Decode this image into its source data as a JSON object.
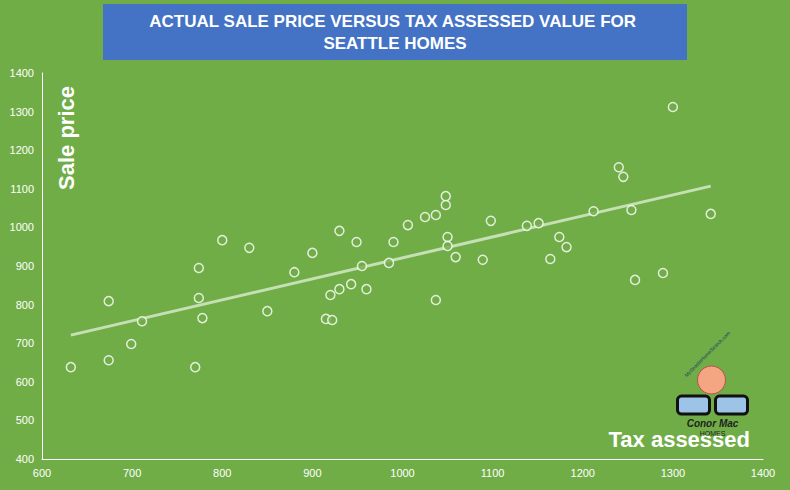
{
  "chart_data": {
    "type": "scatter",
    "title": "ACTUAL SALE PRICE VERSUS TAX ASSESSED VALUE FOR SEATTLE HOMES",
    "x_label": "Tax assessed",
    "y_label": "Sale price",
    "logo_texts": [
      "MySeattleHomeSearch.com",
      "Conor Mac",
      "HOMES"
    ],
    "x": [
      632,
      674,
      674,
      699,
      711,
      770,
      774,
      774,
      778,
      800,
      830,
      850,
      880,
      900,
      915,
      922,
      920,
      930,
      930,
      943,
      949,
      955,
      960,
      985,
      990,
      1006,
      1025,
      1037,
      1037,
      1048,
      1048,
      1050,
      1050,
      1059,
      1089,
      1098,
      1138,
      1151,
      1164,
      1174,
      1182,
      1212,
      1240,
      1245,
      1254,
      1258,
      1289,
      1300,
      1342
    ],
    "values": [
      638,
      809,
      656,
      698,
      757,
      638,
      895,
      817,
      765,
      967,
      947,
      783,
      884,
      934,
      763,
      760,
      825,
      840,
      991,
      853,
      962,
      900,
      840,
      908,
      962,
      1006,
      1027,
      1032,
      812,
      1081,
      1058,
      975,
      952,
      923,
      916,
      1017,
      1004,
      1011,
      918,
      975,
      949,
      1042,
      1156,
      1131,
      1045,
      864,
      882,
      1312,
      1035
    ],
    "trendline": {
      "x": [
        632,
        1342
      ],
      "values": [
        721,
        1107
      ]
    },
    "color": "#ffffff",
    "marker": "circle_open",
    "xlim": [
      600,
      1400
    ],
    "xticks": [
      600,
      700,
      800,
      900,
      1000,
      1100,
      1200,
      1300,
      1400
    ],
    "ylim": [
      400,
      1400
    ],
    "yticks": [
      400,
      500,
      600,
      700,
      800,
      900,
      1000,
      1100,
      1200,
      1300,
      1400
    ],
    "grid": false
  }
}
